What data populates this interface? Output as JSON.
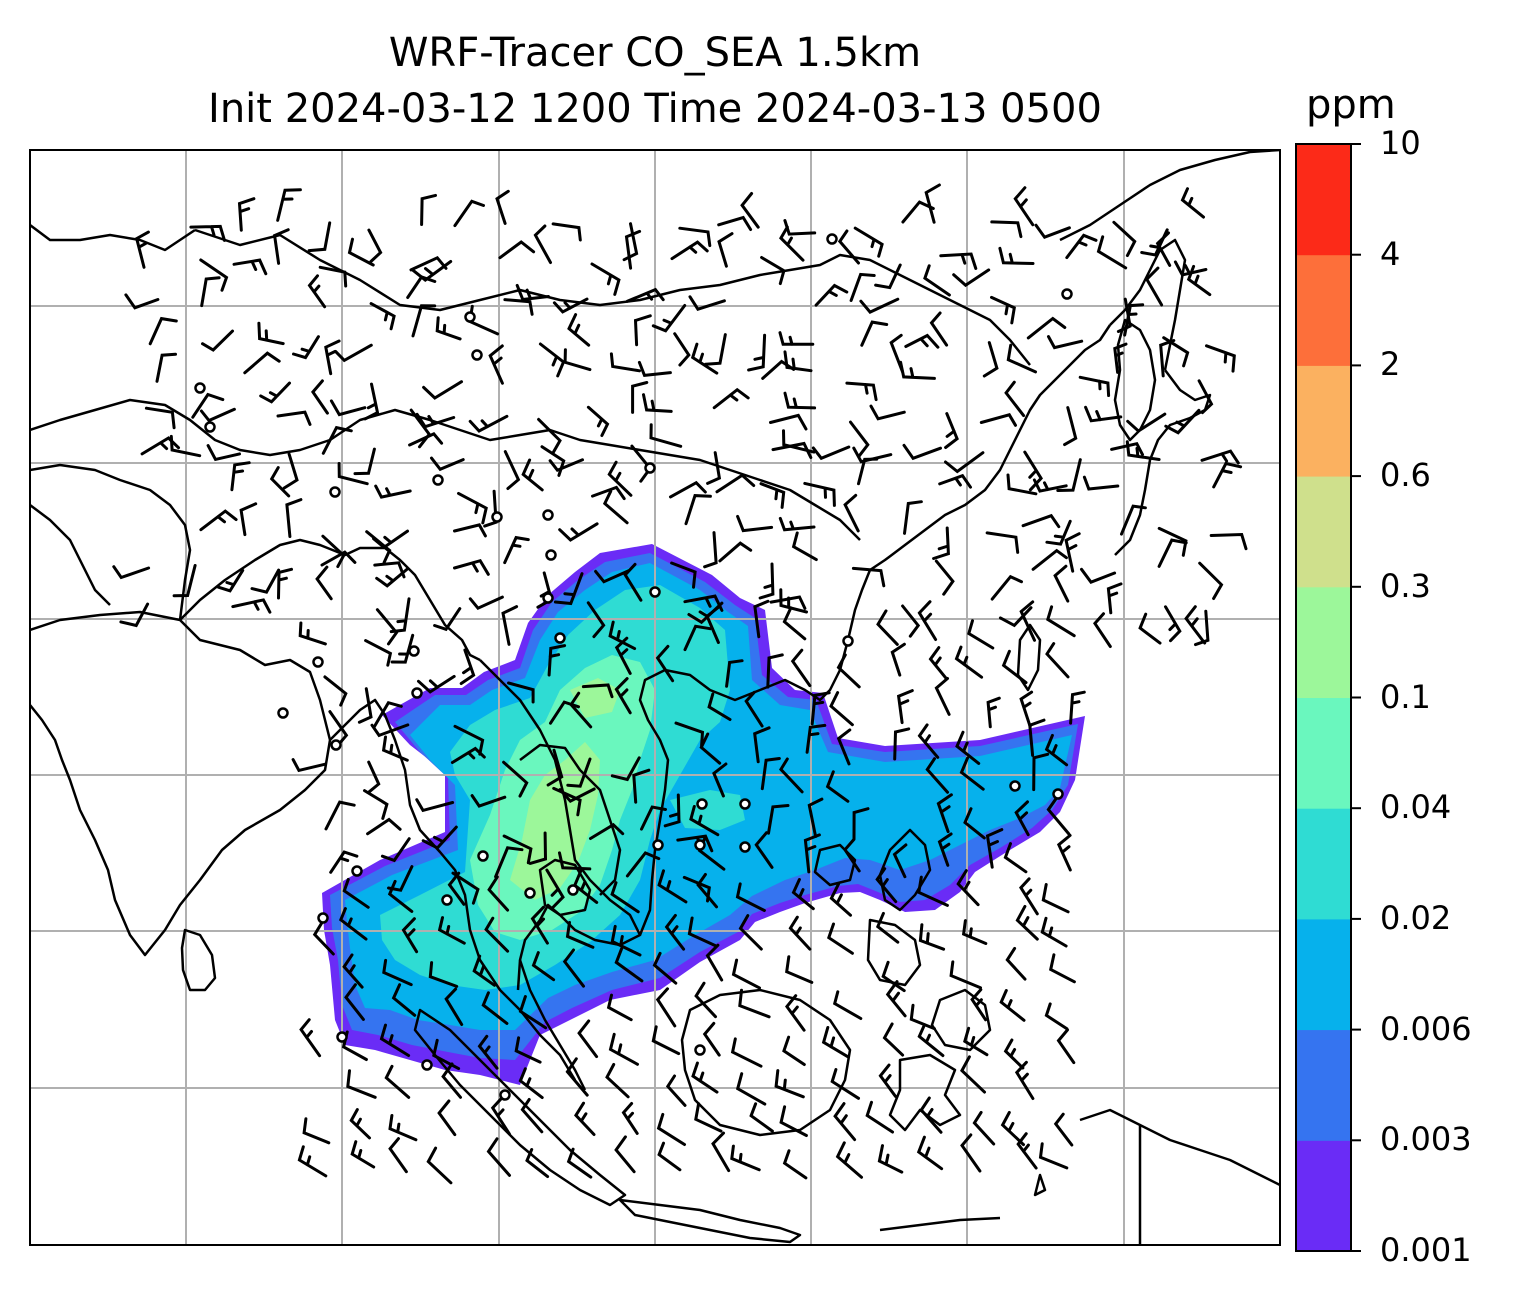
{
  "title": {
    "line1": "WRF-Tracer CO_SEA 1.5km",
    "line2": "Init 2024-03-12 1200 Time 2024-03-13 0500"
  },
  "colorbar": {
    "unit": "ppm",
    "levels": [
      "0.001",
      "0.003",
      "0.006",
      "0.02",
      "0.04",
      "0.1",
      "0.3",
      "0.6",
      "2",
      "4",
      "10"
    ],
    "colors": [
      "#6a2cf6",
      "#3574f0",
      "#06b1ec",
      "#2fdcd3",
      "#6af7be",
      "#9cf79a",
      "#cfe08c",
      "#fbb160",
      "#fd6f3a",
      "#fc2a18"
    ]
  },
  "map": {
    "frame_color": "#000000",
    "grid_color": "#b0b0b0",
    "coast_color": "#000000",
    "barb_color": "#000000"
  }
}
